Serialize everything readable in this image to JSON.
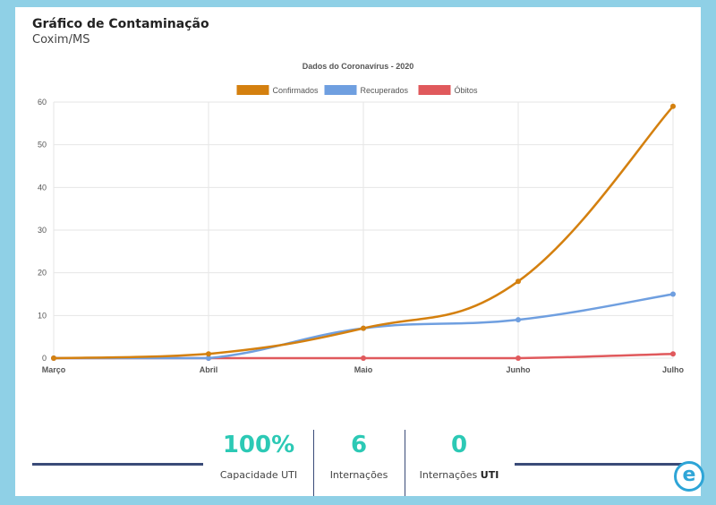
{
  "header": {
    "title": "Gráfico de Contaminação",
    "subtitle": "Coxim/MS"
  },
  "chart_data": {
    "type": "line",
    "title": "Dados do Coronavírus - 2020",
    "categories": [
      "Março",
      "Abril",
      "Maio",
      "Junho",
      "Julho"
    ],
    "ylim": [
      0,
      60
    ],
    "yticks": [
      0,
      10,
      20,
      30,
      40,
      50,
      60
    ],
    "legend_position": "top",
    "grid": true,
    "series": [
      {
        "name": "Confirmados",
        "values": [
          0,
          1,
          7,
          18,
          59
        ],
        "color": "#d4800f"
      },
      {
        "name": "Recuperados",
        "values": [
          0,
          0,
          7,
          9,
          15
        ],
        "color": "#6f9fe0"
      },
      {
        "name": "Óbitos",
        "values": [
          0,
          0,
          0,
          0,
          1
        ],
        "color": "#e0595c"
      }
    ]
  },
  "stats": [
    {
      "value": "100%",
      "label": "Capacidade UTI",
      "label_bold": ""
    },
    {
      "value": "6",
      "label": "Internações",
      "label_bold": ""
    },
    {
      "value": "0",
      "label": "Internações ",
      "label_bold": "UTI"
    }
  ],
  "colors": {
    "accent": "#2cc9b5",
    "line": "#3a4b78",
    "logo": "#2ea5d7"
  },
  "logo": {
    "icon": "e-logo-icon",
    "glyph": "e"
  }
}
